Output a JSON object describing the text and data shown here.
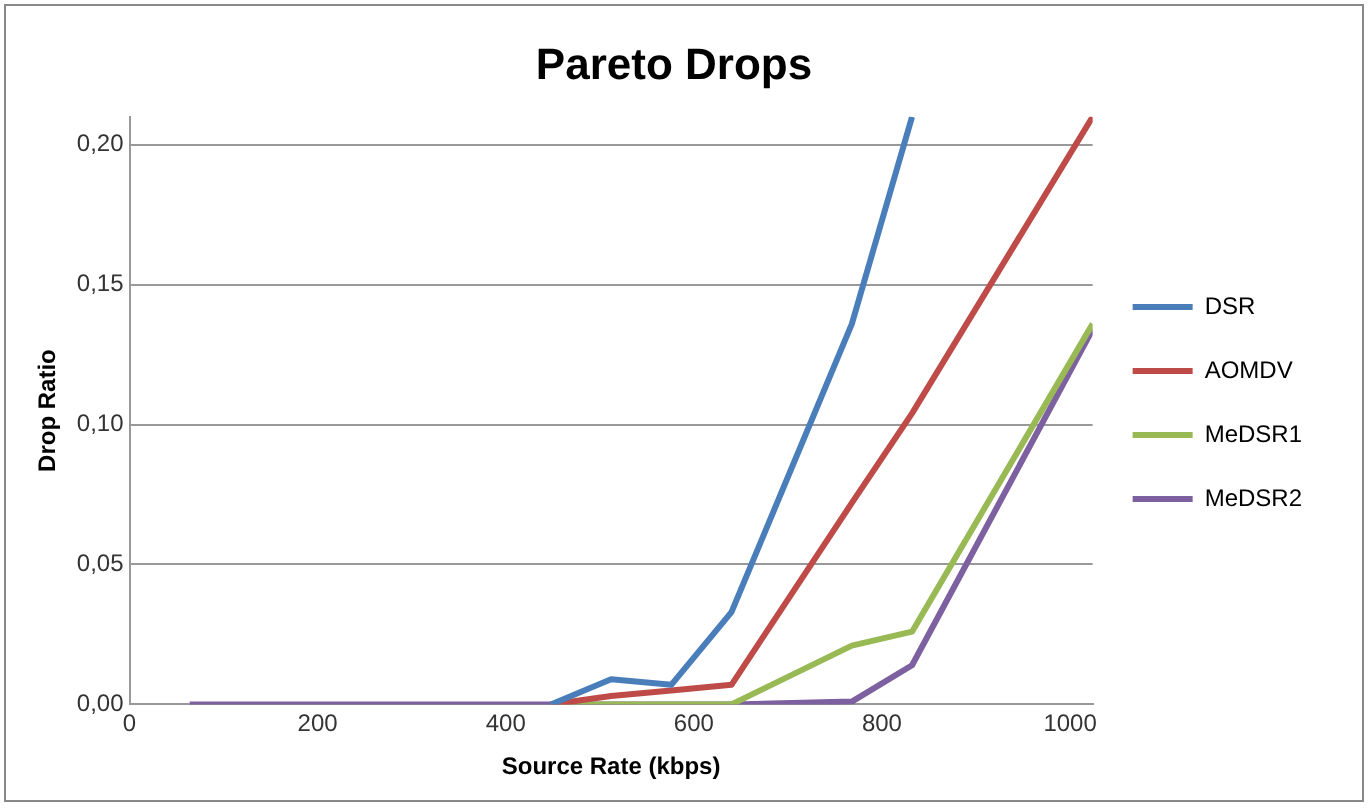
{
  "chart_data": {
    "type": "line",
    "title": "Pareto Drops",
    "xlabel": "Source Rate (kbps)",
    "ylabel": "Drop Ratio",
    "x": [
      64,
      128,
      192,
      256,
      320,
      384,
      448,
      512,
      576,
      640,
      768,
      832,
      1024
    ],
    "series": [
      {
        "name": "DSR",
        "color": "#4a7ebb",
        "values": [
          null,
          null,
          null,
          null,
          null,
          null,
          0,
          0.009,
          0.007,
          0.033,
          0.136,
          0.21,
          null
        ]
      },
      {
        "name": "AOMDV",
        "color": "#be4b48",
        "values": [
          null,
          null,
          null,
          null,
          null,
          null,
          0,
          0.003,
          0.005,
          0.007,
          0.072,
          0.104,
          0.21
        ]
      },
      {
        "name": "MeDSR1",
        "color": "#98b954",
        "values": [
          null,
          null,
          null,
          null,
          null,
          null,
          0,
          0,
          0,
          0,
          0.021,
          0.026,
          0.136
        ]
      },
      {
        "name": "MeDSR2",
        "color": "#7d60a0",
        "values": [
          0,
          0,
          0,
          0,
          0,
          0,
          0,
          0,
          0,
          0,
          0.001,
          0.014,
          0.134
        ]
      }
    ],
    "xlim": [
      0,
      1024
    ],
    "xticks": [
      0,
      200,
      400,
      600,
      800,
      1000
    ],
    "ylim": [
      0,
      0.21
    ],
    "yticks": [
      {
        "value": 0,
        "label": "0,00"
      },
      {
        "value": 0.05,
        "label": "0,05"
      },
      {
        "value": 0.1,
        "label": "0,10"
      },
      {
        "value": 0.15,
        "label": "0,15"
      },
      {
        "value": 0.2,
        "label": "0,20"
      }
    ],
    "grid": "y",
    "legend": "right",
    "marker": "none",
    "line_style": "solid"
  }
}
